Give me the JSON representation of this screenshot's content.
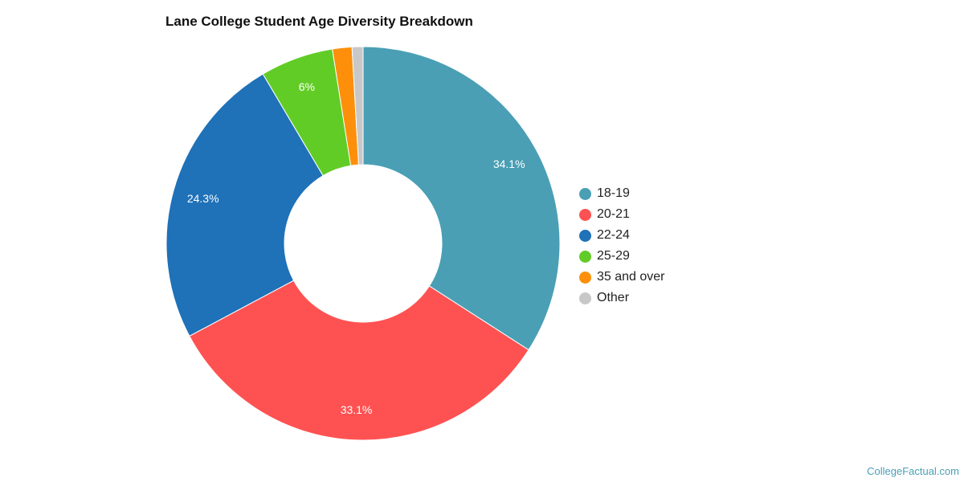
{
  "chart_data": {
    "type": "pie",
    "variant": "donut",
    "title": "Lane College Student Age Diversity Breakdown",
    "categories": [
      "18-19",
      "20-21",
      "22-24",
      "25-29",
      "35 and over",
      "Other"
    ],
    "values": [
      34.1,
      33.1,
      24.3,
      6.0,
      1.6,
      0.9
    ],
    "labels": [
      "34.1%",
      "33.1%",
      "24.3%",
      "6%",
      "",
      ""
    ],
    "colors": [
      "#4a9fb5",
      "#fe5252",
      "#1f71b8",
      "#62cc27",
      "#fd8f0a",
      "#c8c8c8"
    ],
    "legend_position": "right"
  },
  "credit": "CollegeFactual.com"
}
